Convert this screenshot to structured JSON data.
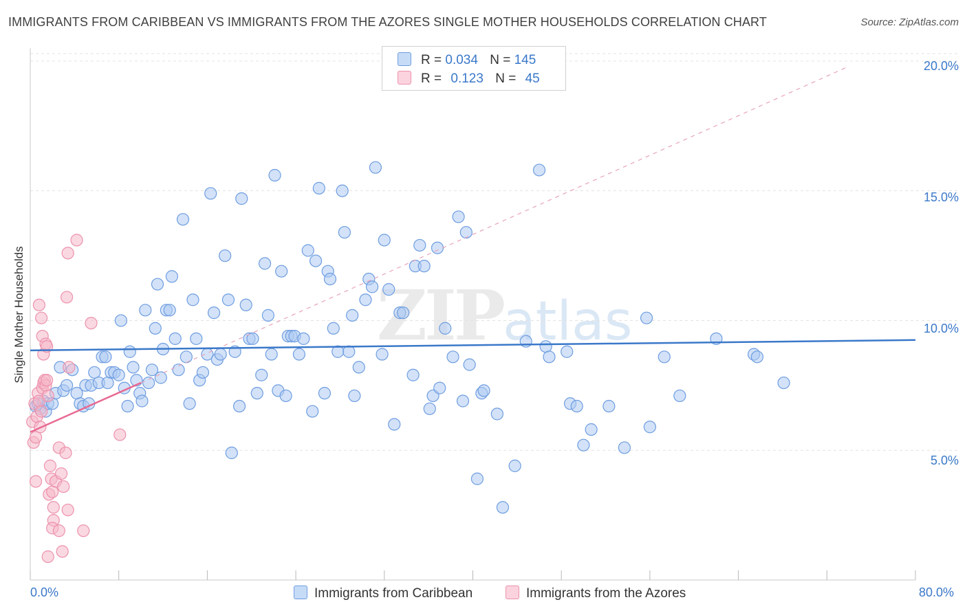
{
  "header": {
    "title": "IMMIGRANTS FROM CARIBBEAN VS IMMIGRANTS FROM THE AZORES SINGLE MOTHER HOUSEHOLDS CORRELATION CHART",
    "source": "Source: ZipAtlas.com"
  },
  "watermark": {
    "zip": "ZIP",
    "atlas": "atlas"
  },
  "legend": {
    "rows": [
      {
        "r_label": "R =",
        "r_value": "0.034",
        "n_label": "N =",
        "n_value": "145",
        "color": "#aecbf2"
      },
      {
        "r_label": "R =",
        "r_value": "0.123",
        "n_label": "N =",
        "n_value": "45",
        "color": "#f6b8c9"
      }
    ]
  },
  "bottom_legend": {
    "series1": "Immigrants from Caribbean",
    "series2": "Immigrants from the Azores"
  },
  "axis": {
    "x_min_label": "0.0%",
    "x_max_label": "80.0%",
    "y_ticks": [
      "5.0%",
      "10.0%",
      "15.0%",
      "20.0%"
    ],
    "y_label": "Single Mother Households"
  },
  "colors": {
    "blue_fill": "#aecbf2",
    "blue_stroke": "#6e9de0",
    "blue_line": "#3a78c9",
    "pink_fill": "#f6b8c9",
    "pink_stroke": "#ec91ac",
    "pink_line": "#e86a92",
    "grid": "#e3e3e3"
  },
  "chart_data": {
    "type": "scatter",
    "xlabel": "",
    "ylabel": "Single Mother Households",
    "xlim": [
      0,
      80
    ],
    "ylim": [
      0,
      20.5
    ],
    "y_ticks": [
      5,
      10,
      15,
      20
    ],
    "grid": true,
    "series": [
      {
        "name": "Immigrants from Caribbean",
        "trend": {
          "x": [
            0,
            80
          ],
          "y": [
            8.85,
            9.25
          ]
        },
        "points": [
          [
            0.5,
            6.7
          ],
          [
            0.7,
            6.8
          ],
          [
            0.9,
            6.6
          ],
          [
            1.2,
            6.9
          ],
          [
            1.4,
            6.5
          ],
          [
            1.6,
            6.8
          ],
          [
            2.0,
            6.8
          ],
          [
            2.3,
            7.2
          ],
          [
            2.7,
            8.2
          ],
          [
            3.0,
            7.3
          ],
          [
            3.3,
            7.5
          ],
          [
            3.8,
            8.1
          ],
          [
            4.2,
            7.2
          ],
          [
            4.5,
            6.8
          ],
          [
            4.8,
            6.7
          ],
          [
            5.0,
            7.5
          ],
          [
            5.3,
            6.8
          ],
          [
            5.5,
            7.5
          ],
          [
            5.8,
            8.0
          ],
          [
            6.2,
            7.6
          ],
          [
            6.5,
            8.6
          ],
          [
            6.8,
            8.6
          ],
          [
            7.0,
            7.6
          ],
          [
            7.3,
            8.0
          ],
          [
            7.6,
            8.0
          ],
          [
            8.0,
            7.9
          ],
          [
            8.2,
            10.0
          ],
          [
            8.5,
            7.4
          ],
          [
            8.8,
            6.7
          ],
          [
            9.0,
            8.8
          ],
          [
            9.3,
            8.2
          ],
          [
            9.6,
            7.7
          ],
          [
            9.9,
            7.2
          ],
          [
            10.1,
            6.9
          ],
          [
            10.4,
            10.4
          ],
          [
            10.7,
            7.6
          ],
          [
            11.0,
            8.1
          ],
          [
            11.3,
            9.7
          ],
          [
            11.5,
            11.4
          ],
          [
            11.8,
            7.8
          ],
          [
            12.0,
            8.9
          ],
          [
            12.3,
            10.4
          ],
          [
            12.6,
            10.4
          ],
          [
            12.8,
            11.7
          ],
          [
            13.1,
            9.3
          ],
          [
            13.4,
            8.1
          ],
          [
            13.8,
            13.9
          ],
          [
            14.1,
            8.6
          ],
          [
            14.4,
            6.8
          ],
          [
            14.7,
            10.8
          ],
          [
            15.0,
            9.3
          ],
          [
            15.3,
            7.7
          ],
          [
            15.6,
            8.0
          ],
          [
            16.0,
            8.7
          ],
          [
            16.3,
            14.9
          ],
          [
            16.6,
            10.3
          ],
          [
            16.9,
            8.5
          ],
          [
            17.2,
            8.7
          ],
          [
            17.6,
            12.5
          ],
          [
            17.9,
            10.8
          ],
          [
            18.2,
            4.9
          ],
          [
            18.5,
            8.8
          ],
          [
            18.9,
            6.7
          ],
          [
            19.1,
            14.7
          ],
          [
            19.5,
            10.6
          ],
          [
            19.8,
            9.3
          ],
          [
            20.1,
            9.3
          ],
          [
            20.5,
            7.2
          ],
          [
            20.9,
            7.9
          ],
          [
            21.2,
            12.2
          ],
          [
            21.5,
            10.2
          ],
          [
            21.8,
            8.7
          ],
          [
            22.1,
            15.6
          ],
          [
            22.4,
            7.3
          ],
          [
            22.7,
            11.9
          ],
          [
            23.1,
            7.1
          ],
          [
            23.3,
            9.4
          ],
          [
            23.6,
            9.4
          ],
          [
            23.9,
            9.4
          ],
          [
            24.3,
            8.7
          ],
          [
            24.7,
            9.3
          ],
          [
            25.1,
            12.7
          ],
          [
            25.5,
            6.5
          ],
          [
            25.8,
            12.3
          ],
          [
            26.1,
            15.1
          ],
          [
            26.6,
            7.2
          ],
          [
            26.9,
            11.9
          ],
          [
            27.1,
            11.6
          ],
          [
            27.4,
            9.7
          ],
          [
            27.8,
            8.8
          ],
          [
            28.2,
            15.0
          ],
          [
            28.4,
            13.4
          ],
          [
            28.8,
            8.8
          ],
          [
            29.1,
            10.2
          ],
          [
            29.3,
            7.1
          ],
          [
            29.7,
            8.2
          ],
          [
            30.3,
            10.8
          ],
          [
            30.6,
            11.6
          ],
          [
            30.9,
            11.3
          ],
          [
            31.2,
            15.9
          ],
          [
            31.8,
            8.7
          ],
          [
            32.0,
            13.1
          ],
          [
            32.4,
            11.2
          ],
          [
            32.9,
            6.0
          ],
          [
            33.4,
            10.3
          ],
          [
            33.7,
            10.3
          ],
          [
            34.6,
            7.9
          ],
          [
            34.8,
            12.1
          ],
          [
            35.2,
            12.9
          ],
          [
            35.6,
            12.1
          ],
          [
            36.1,
            6.6
          ],
          [
            36.4,
            7.1
          ],
          [
            36.8,
            12.8
          ],
          [
            37.0,
            7.4
          ],
          [
            37.5,
            9.7
          ],
          [
            38.2,
            8.6
          ],
          [
            38.7,
            14.0
          ],
          [
            39.1,
            6.9
          ],
          [
            39.4,
            13.4
          ],
          [
            39.7,
            8.3
          ],
          [
            40.4,
            3.9
          ],
          [
            40.8,
            7.2
          ],
          [
            41.0,
            7.3
          ],
          [
            42.7,
            2.8
          ],
          [
            42.2,
            6.4
          ],
          [
            43.8,
            4.4
          ],
          [
            44.8,
            9.2
          ],
          [
            46.0,
            15.8
          ],
          [
            46.6,
            9.0
          ],
          [
            46.9,
            8.6
          ],
          [
            48.5,
            8.8
          ],
          [
            48.8,
            6.8
          ],
          [
            49.4,
            6.7
          ],
          [
            50.0,
            5.2
          ],
          [
            50.7,
            5.8
          ],
          [
            52.3,
            6.7
          ],
          [
            53.7,
            5.1
          ],
          [
            55.7,
            10.1
          ],
          [
            56.0,
            5.9
          ],
          [
            57.3,
            8.6
          ],
          [
            58.7,
            7.1
          ],
          [
            62.0,
            9.3
          ],
          [
            65.4,
            8.7
          ],
          [
            65.7,
            8.6
          ],
          [
            68.1,
            7.6
          ]
        ]
      },
      {
        "name": "Immigrants from the Azores",
        "trend": {
          "x": [
            0,
            10
          ],
          "y": [
            5.7,
            7.6
          ]
        },
        "points": [
          [
            0.2,
            6.1
          ],
          [
            0.3,
            5.3
          ],
          [
            0.4,
            6.8
          ],
          [
            0.5,
            5.5
          ],
          [
            0.6,
            6.3
          ],
          [
            0.7,
            7.2
          ],
          [
            0.8,
            6.9
          ],
          [
            0.9,
            5.9
          ],
          [
            1.0,
            6.5
          ],
          [
            1.1,
            7.4
          ],
          [
            1.2,
            7.6
          ],
          [
            1.3,
            7.7
          ],
          [
            1.4,
            7.5
          ],
          [
            1.5,
            7.7
          ],
          [
            1.6,
            7.1
          ],
          [
            0.5,
            3.8
          ],
          [
            0.8,
            10.6
          ],
          [
            1.0,
            10.1
          ],
          [
            1.1,
            9.4
          ],
          [
            1.2,
            8.7
          ],
          [
            1.4,
            9.1
          ],
          [
            1.5,
            9.0
          ],
          [
            1.7,
            3.3
          ],
          [
            1.8,
            4.4
          ],
          [
            1.9,
            3.9
          ],
          [
            2.0,
            3.4
          ],
          [
            2.1,
            2.8
          ],
          [
            2.1,
            2.3
          ],
          [
            2.0,
            2.0
          ],
          [
            2.3,
            3.8
          ],
          [
            2.6,
            5.1
          ],
          [
            2.8,
            4.1
          ],
          [
            2.6,
            1.9
          ],
          [
            2.9,
            1.1
          ],
          [
            3.0,
            3.6
          ],
          [
            3.2,
            4.9
          ],
          [
            3.4,
            2.7
          ],
          [
            1.6,
            0.9
          ],
          [
            3.3,
            10.9
          ],
          [
            3.5,
            8.2
          ],
          [
            3.4,
            12.6
          ],
          [
            4.2,
            13.1
          ],
          [
            4.8,
            1.9
          ],
          [
            5.5,
            9.9
          ],
          [
            8.1,
            5.6
          ]
        ]
      }
    ]
  }
}
